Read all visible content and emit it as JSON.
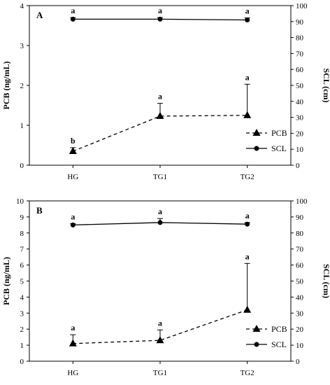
{
  "chart_data": [
    {
      "type": "line",
      "panel": "A",
      "categories": [
        "HG",
        "TG1",
        "TG2"
      ],
      "ylabel": "PCB  (ng/mL)",
      "ylabel_right": "SCL  (cm)",
      "ylim": [
        0,
        4
      ],
      "yticks": [
        0,
        1,
        2,
        3,
        4
      ],
      "ylim_right": [
        0,
        100
      ],
      "yticks_right": [
        0,
        10,
        20,
        30,
        40,
        50,
        60,
        70,
        80,
        90,
        100
      ],
      "legend": "bottom-right",
      "series": [
        {
          "name": "PCB",
          "axis": "left",
          "style": "dashed",
          "marker": "triangle",
          "values": [
            0.35,
            1.23,
            1.25
          ],
          "error_upper": [
            0.44,
            1.55,
            2.03
          ],
          "letters": [
            "b",
            "a",
            "a"
          ]
        },
        {
          "name": "SCL",
          "axis": "right",
          "style": "solid",
          "marker": "circle",
          "values": [
            91.5,
            91.5,
            91.0
          ],
          "error_upper": [
            92.5,
            92.5,
            92.3
          ],
          "letters": [
            "a",
            "a",
            "a"
          ]
        }
      ]
    },
    {
      "type": "line",
      "panel": "B",
      "categories": [
        "HG",
        "TG1",
        "TG2"
      ],
      "ylabel": "PCB  (ng/mL)",
      "ylabel_right": "SCL  (cm)",
      "ylim": [
        0,
        10
      ],
      "yticks": [
        0,
        1,
        2,
        3,
        4,
        5,
        6,
        7,
        8,
        9,
        10
      ],
      "ylim_right": [
        0,
        100
      ],
      "yticks_right": [
        0,
        10,
        20,
        30,
        40,
        50,
        60,
        70,
        80,
        90,
        100
      ],
      "legend": "bottom-right",
      "series": [
        {
          "name": "PCB",
          "axis": "left",
          "style": "dashed",
          "marker": "triangle",
          "values": [
            1.1,
            1.3,
            3.2
          ],
          "error_upper": [
            1.65,
            1.95,
            6.1
          ],
          "letters": [
            "a",
            "a",
            "a"
          ]
        },
        {
          "name": "SCL",
          "axis": "right",
          "style": "solid",
          "marker": "circle",
          "values": [
            85.0,
            86.5,
            85.5
          ],
          "error_upper": [
            85.8,
            89.0,
            86.5
          ],
          "letters": [
            "a",
            "a",
            "a"
          ]
        }
      ]
    }
  ]
}
